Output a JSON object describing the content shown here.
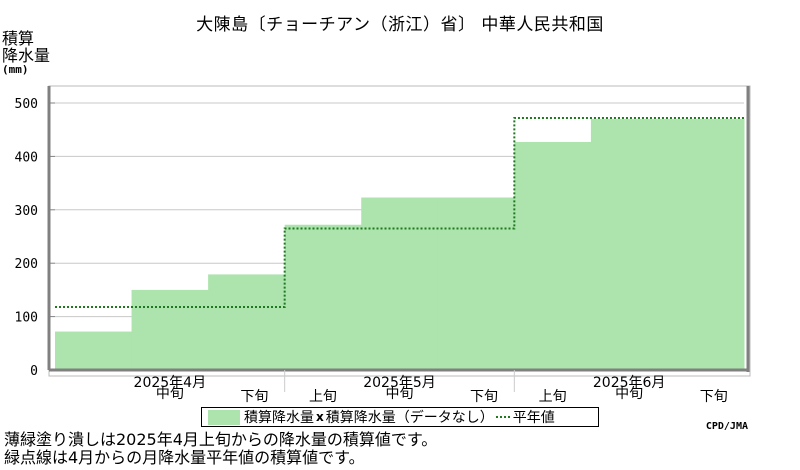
{
  "title": "大陳島〔チョーチアン（浙江）省〕 中華人民共和国",
  "ylabel_line1": "積算",
  "ylabel_line2": "降水量",
  "ylabel_unit": "(mm)",
  "legend": {
    "bar_label": "積算降水量",
    "missing_label": "積算降水量（データなし）",
    "line_label": "平年値"
  },
  "credit": "CPD/JMA",
  "notes": [
    "薄緑塗り潰しは2025年4月上旬からの降水量の積算値です。",
    "緑点線は4月からの月降水量平年値の積算値です。"
  ],
  "colors": {
    "bar": "#ade3ad",
    "normal_line": "#1f7a1f",
    "axis": "#808080",
    "grid": "#c8c8c8"
  },
  "chart_data": {
    "type": "bar",
    "categories": [
      "2025年4月上旬",
      "2025年4月中旬",
      "2025年4月下旬",
      "2025年5月上旬",
      "2025年5月中旬",
      "2025年5月下旬",
      "2025年6月上旬",
      "2025年6月中旬",
      "2025年6月下旬"
    ],
    "tick_labels": [
      "",
      "中旬",
      "下旬",
      "上旬",
      "中旬",
      "下旬",
      "上旬",
      "中旬",
      "下旬"
    ],
    "month_labels": [
      "2025年4月",
      "2025年5月",
      "2025年6月"
    ],
    "series": [
      {
        "name": "積算降水量",
        "values": [
          72,
          150,
          179,
          272,
          323,
          323,
          427,
          470,
          470
        ]
      },
      {
        "name": "平年値",
        "type": "step",
        "values": [
          118,
          118,
          118,
          265,
          265,
          265,
          472,
          472,
          472
        ]
      }
    ],
    "yticks": [
      0,
      100,
      200,
      300,
      400,
      500
    ],
    "ylim": [
      0,
      500
    ],
    "grid": true
  }
}
